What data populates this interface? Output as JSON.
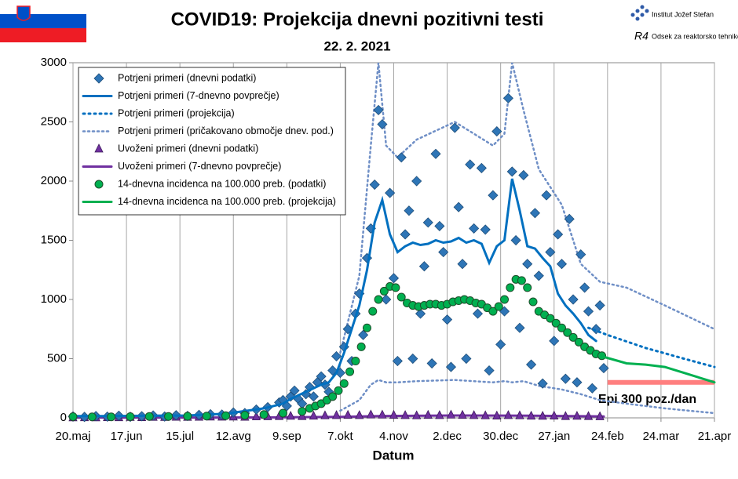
{
  "chart_data": {
    "type": "line",
    "title": "COVID19: Projekcija dnevni pozitivni testi",
    "subtitle": "22. 2. 2021",
    "x_label": "Datum",
    "logo": {
      "institute": "Institut Jožef Stefan",
      "department": "Odsek za reaktorsko tehniko",
      "mark": "R4"
    },
    "xlim": [
      0,
      336
    ],
    "ylim": [
      0,
      3000
    ],
    "xticks": [
      {
        "value": 0,
        "label": "20.maj"
      },
      {
        "value": 28,
        "label": "17.jun"
      },
      {
        "value": 56,
        "label": "15.jul"
      },
      {
        "value": 84,
        "label": "12.avg"
      },
      {
        "value": 112,
        "label": "9.sep"
      },
      {
        "value": 140,
        "label": "7.okt"
      },
      {
        "value": 168,
        "label": "4.nov"
      },
      {
        "value": 196,
        "label": "2.dec"
      },
      {
        "value": 224,
        "label": "30.dec"
      },
      {
        "value": 252,
        "label": "27.jan"
      },
      {
        "value": 280,
        "label": "24.feb"
      },
      {
        "value": 308,
        "label": "24.mar"
      },
      {
        "value": 336,
        "label": "21.apr"
      }
    ],
    "yticks": [
      0,
      500,
      1000,
      1500,
      2000,
      2500,
      3000
    ],
    "grid": "x",
    "legend": "upper left",
    "series": [
      {
        "name": "Potrjeni primeri (dnevni podatki)",
        "kind": "marker",
        "marker": "diamond",
        "color": "#2e75b6",
        "x": [
          0,
          6,
          12,
          18,
          24,
          30,
          36,
          42,
          48,
          54,
          60,
          66,
          72,
          78,
          84,
          90,
          96,
          102,
          108,
          110,
          112,
          114,
          116,
          118,
          120,
          122,
          124,
          126,
          128,
          130,
          132,
          134,
          136,
          138,
          140,
          142,
          144,
          146,
          148,
          150,
          152,
          154,
          156,
          158,
          160,
          162,
          164,
          166,
          168,
          170,
          172,
          174,
          176,
          178,
          180,
          182,
          184,
          186,
          188,
          190,
          192,
          194,
          196,
          198,
          200,
          202,
          204,
          206,
          208,
          210,
          212,
          214,
          216,
          218,
          220,
          222,
          224,
          226,
          228,
          230,
          232,
          234,
          236,
          238,
          240,
          242,
          244,
          246,
          248,
          250,
          252,
          254,
          256,
          258,
          260,
          262,
          264,
          266,
          268,
          270,
          272,
          274,
          276,
          278
        ],
        "values": [
          12,
          8,
          15,
          10,
          18,
          9,
          14,
          20,
          11,
          22,
          16,
          25,
          30,
          28,
          45,
          40,
          70,
          90,
          130,
          150,
          100,
          180,
          230,
          160,
          120,
          200,
          260,
          180,
          300,
          350,
          280,
          220,
          400,
          520,
          380,
          600,
          750,
          480,
          880,
          1050,
          700,
          1350,
          1600,
          1970,
          2600,
          2480,
          1000,
          1900,
          1180,
          480,
          2200,
          1550,
          1750,
          500,
          2000,
          880,
          1280,
          1650,
          460,
          2230,
          1620,
          1400,
          830,
          430,
          2450,
          1780,
          1300,
          500,
          2140,
          1600,
          880,
          2110,
          1590,
          400,
          1880,
          2420,
          620,
          900,
          2700,
          2080,
          1500,
          760,
          2050,
          1300,
          450,
          1730,
          1200,
          290,
          1880,
          1400,
          650,
          1550,
          1300,
          330,
          1680,
          1000,
          300,
          1380,
          1100,
          900,
          250,
          750,
          950,
          420
        ]
      },
      {
        "name": "Potrjeni primeri (7-dnevno povprečje)",
        "kind": "line",
        "color": "#0070c0",
        "width": 3,
        "x": [
          0,
          20,
          40,
          60,
          80,
          100,
          110,
          114,
          118,
          122,
          126,
          130,
          134,
          138,
          142,
          146,
          150,
          154,
          158,
          162,
          166,
          170,
          174,
          178,
          182,
          186,
          190,
          194,
          198,
          202,
          206,
          210,
          214,
          218,
          222,
          226,
          230,
          234,
          238,
          242,
          246,
          250,
          254,
          258,
          262,
          266,
          270,
          274
        ],
        "values": [
          15,
          15,
          18,
          20,
          35,
          80,
          120,
          160,
          190,
          220,
          250,
          280,
          300,
          380,
          550,
          750,
          950,
          1250,
          1650,
          1840,
          1550,
          1400,
          1450,
          1480,
          1460,
          1470,
          1500,
          1480,
          1490,
          1520,
          1480,
          1500,
          1470,
          1310,
          1450,
          1500,
          2020,
          1750,
          1450,
          1430,
          1350,
          1280,
          1050,
          950,
          880,
          800,
          700,
          650
        ]
      },
      {
        "name": "Potrjeni primeri (projekcija)",
        "kind": "line",
        "dash": "2 5",
        "color": "#0070c0",
        "width": 3,
        "x": [
          270,
          280,
          300,
          320,
          336
        ],
        "values": [
          760,
          700,
          590,
          500,
          430
        ]
      },
      {
        "name": "Potrjeni primeri (pričakovano območje dnev. pod.)",
        "kind": "range",
        "dash": "2 4",
        "color": "#6f8fc6",
        "width": 2.5,
        "x": [
          140,
          150,
          156,
          160,
          164,
          170,
          180,
          200,
          220,
          226,
          230,
          236,
          244,
          256,
          266,
          276,
          290,
          310,
          336
        ],
        "high": [
          550,
          1200,
          2300,
          3000,
          2300,
          2200,
          2350,
          2500,
          2300,
          2400,
          3000,
          2600,
          2100,
          1800,
          1300,
          1150,
          1100,
          950,
          750
        ],
        "low": [
          60,
          150,
          280,
          320,
          300,
          300,
          310,
          320,
          300,
          310,
          300,
          310,
          270,
          240,
          200,
          150,
          120,
          80,
          40
        ]
      },
      {
        "name": "Uvoženi primeri (dnevni podatki)",
        "kind": "marker",
        "marker": "triangle",
        "color": "#7030a0",
        "x": [
          0,
          6,
          12,
          18,
          24,
          30,
          36,
          42,
          48,
          54,
          60,
          66,
          72,
          78,
          84,
          90,
          96,
          102,
          108,
          114,
          120,
          126,
          132,
          138,
          144,
          150,
          156,
          162,
          168,
          174,
          180,
          186,
          192,
          198,
          204,
          210,
          216,
          222,
          228,
          234,
          240,
          246,
          252,
          258,
          264,
          270,
          276
        ],
        "values": [
          1,
          2,
          1,
          3,
          2,
          4,
          3,
          5,
          4,
          6,
          5,
          6,
          8,
          7,
          8,
          6,
          9,
          10,
          12,
          14,
          12,
          15,
          18,
          20,
          22,
          20,
          25,
          24,
          22,
          20,
          18,
          22,
          20,
          24,
          22,
          20,
          18,
          16,
          20,
          18,
          15,
          14,
          16,
          12,
          14,
          12,
          10
        ]
      },
      {
        "name": "Uvoženi primeri (7-dnevno povprečje)",
        "kind": "line",
        "color": "#7030a0",
        "width": 3,
        "x": [
          0,
          100,
          140,
          160,
          200,
          240,
          278
        ],
        "values": [
          2,
          3,
          8,
          15,
          20,
          18,
          12
        ]
      },
      {
        "name": "14-dnevna incidenca na 100.000 preb. (podatki)",
        "kind": "marker",
        "marker": "circle",
        "color": "#00b050",
        "x": [
          0,
          10,
          20,
          30,
          40,
          50,
          60,
          70,
          80,
          90,
          100,
          110,
          120,
          124,
          127,
          130,
          133,
          136,
          139,
          142,
          145,
          148,
          151,
          154,
          157,
          160,
          163,
          166,
          169,
          172,
          175,
          178,
          181,
          184,
          187,
          190,
          193,
          196,
          199,
          202,
          205,
          208,
          211,
          214,
          217,
          220,
          223,
          226,
          229,
          232,
          235,
          238,
          241,
          244,
          247,
          250,
          253,
          256,
          259,
          262,
          265,
          268,
          271,
          274,
          277
        ],
        "values": [
          10,
          8,
          8,
          10,
          12,
          12,
          14,
          15,
          18,
          22,
          28,
          40,
          55,
          80,
          100,
          120,
          150,
          180,
          230,
          290,
          390,
          480,
          600,
          760,
          900,
          1000,
          1070,
          1110,
          1100,
          1020,
          970,
          950,
          940,
          950,
          960,
          960,
          950,
          960,
          980,
          990,
          1000,
          990,
          970,
          960,
          930,
          900,
          940,
          1000,
          1100,
          1170,
          1160,
          1100,
          980,
          900,
          870,
          840,
          800,
          760,
          720,
          680,
          640,
          600,
          570,
          540,
          525
        ]
      },
      {
        "name": "14-dnevna incidenca na 100.000 preb. (projekcija)",
        "kind": "line",
        "color": "#00b050",
        "width": 3,
        "x": [
          277,
          290,
          300,
          310,
          320,
          336
        ],
        "values": [
          520,
          460,
          450,
          430,
          380,
          300
        ]
      }
    ],
    "annotations": [
      {
        "text": "Epi 300 poz./dan",
        "value": 300,
        "x": [
          280,
          336
        ],
        "color": "#ff7f7f"
      }
    ]
  }
}
